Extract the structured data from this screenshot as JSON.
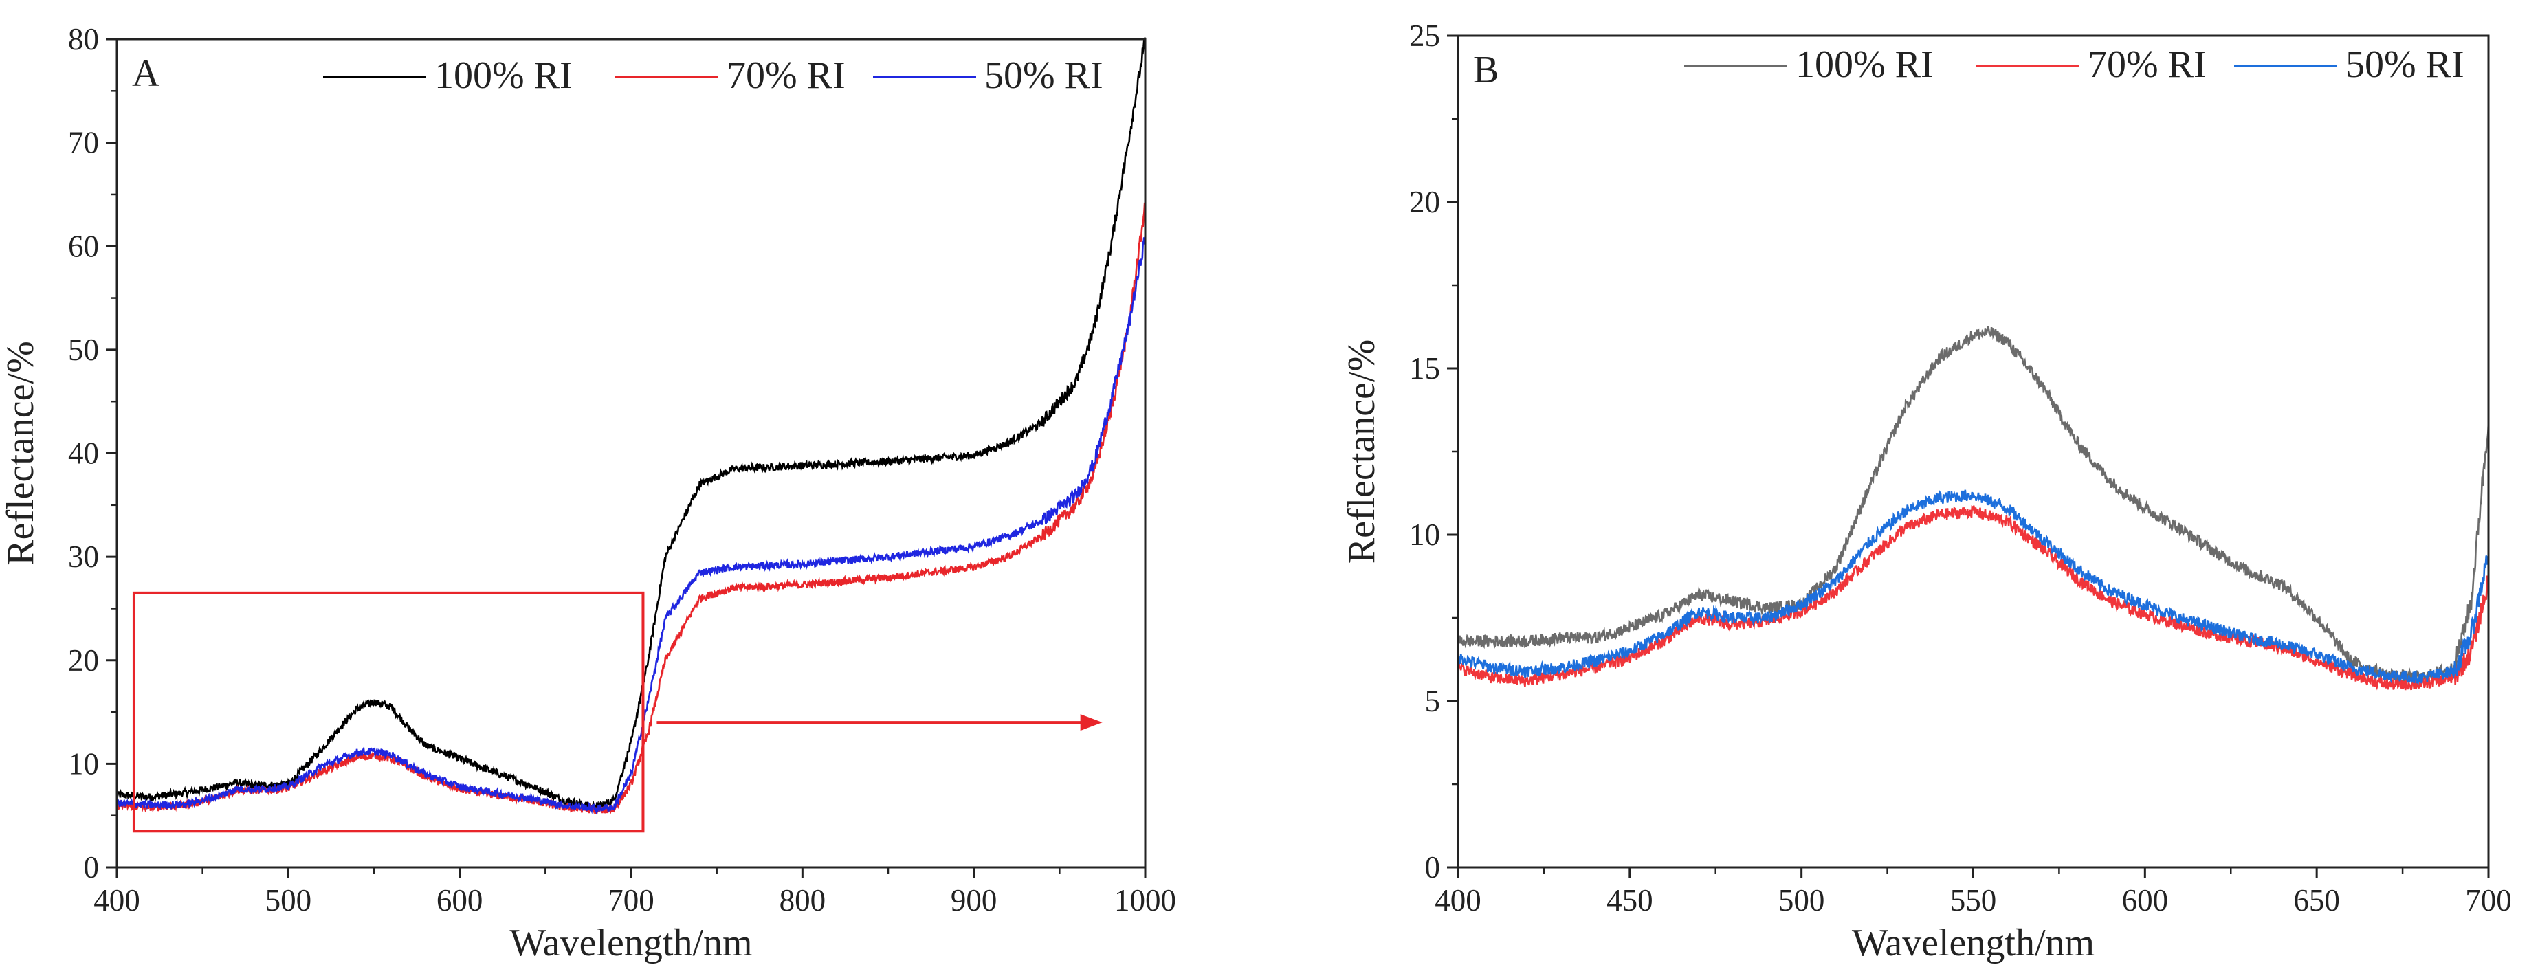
{
  "chart_data": [
    {
      "panel": "A",
      "type": "line",
      "xlabel": "Wavelength/nm",
      "ylabel": "Reflectance/%",
      "xlim": [
        400,
        1000
      ],
      "ylim": [
        0,
        80
      ],
      "xticks": [
        400,
        500,
        600,
        700,
        800,
        900,
        1000
      ],
      "yticks": [
        0,
        10,
        20,
        30,
        40,
        50,
        60,
        70,
        80
      ],
      "legend_position": "top-right",
      "annotations": [
        {
          "type": "highlight-box",
          "x_range": [
            410,
            707
          ],
          "y_range": [
            3.5,
            26.5
          ],
          "color": "#e8252a"
        },
        {
          "type": "arrow",
          "from": [
            715,
            14
          ],
          "to": [
            975,
            14
          ],
          "color": "#e8252a"
        }
      ],
      "series": [
        {
          "name": "100% RI",
          "color": "#000000",
          "x": [
            400,
            420,
            440,
            460,
            470,
            480,
            500,
            520,
            530,
            540,
            550,
            560,
            570,
            580,
            600,
            620,
            640,
            660,
            680,
            690,
            700,
            710,
            720,
            740,
            760,
            800,
            850,
            900,
            920,
            940,
            960,
            970,
            980,
            990,
            1000
          ],
          "y": [
            7,
            6.8,
            7.2,
            7.8,
            8.2,
            7.9,
            8.0,
            11.5,
            13.5,
            15.3,
            16.0,
            15.5,
            13.5,
            11.8,
            10.5,
            9.2,
            8.0,
            6.5,
            5.8,
            6.5,
            12,
            20,
            30,
            37,
            38.5,
            38.8,
            39.2,
            39.8,
            41,
            43,
            47,
            52,
            60,
            70,
            80
          ]
        },
        {
          "name": "70% RI",
          "color": "#e8252a",
          "x": [
            400,
            420,
            440,
            460,
            470,
            480,
            500,
            520,
            540,
            550,
            560,
            580,
            600,
            620,
            640,
            660,
            680,
            690,
            700,
            710,
            720,
            740,
            760,
            800,
            850,
            900,
            920,
            940,
            960,
            970,
            980,
            990,
            1000
          ],
          "y": [
            6.0,
            5.8,
            6.0,
            6.8,
            7.5,
            7.4,
            7.6,
            9.3,
            10.6,
            10.8,
            10.5,
            8.8,
            7.5,
            7.0,
            6.5,
            5.8,
            5.5,
            5.6,
            8,
            13,
            20,
            26,
            27,
            27.3,
            28,
            29,
            30,
            32,
            35,
            38,
            44,
            52,
            64
          ]
        },
        {
          "name": "50% RI",
          "color": "#1f26e0",
          "x": [
            400,
            420,
            440,
            460,
            470,
            480,
            500,
            520,
            540,
            550,
            560,
            580,
            600,
            620,
            640,
            660,
            680,
            690,
            700,
            710,
            720,
            740,
            760,
            800,
            850,
            900,
            920,
            940,
            960,
            970,
            980,
            990,
            1000
          ],
          "y": [
            6.2,
            6.0,
            6.1,
            6.9,
            7.6,
            7.5,
            7.8,
            9.8,
            11.1,
            11.2,
            10.9,
            9.0,
            7.8,
            7.2,
            6.7,
            6.0,
            5.7,
            5.8,
            9,
            16,
            24,
            28.5,
            29,
            29.3,
            30,
            31,
            32,
            33.5,
            36,
            39,
            45,
            52,
            61
          ]
        }
      ]
    },
    {
      "panel": "B",
      "type": "line",
      "xlabel": "Wavelength/nm",
      "ylabel": "Reflectance/%",
      "xlim": [
        400,
        700
      ],
      "ylim": [
        0,
        25
      ],
      "xticks": [
        400,
        450,
        500,
        550,
        600,
        650,
        700
      ],
      "yticks": [
        0,
        5,
        10,
        15,
        20,
        25
      ],
      "legend_position": "top-right",
      "series": [
        {
          "name": "100% RI",
          "color": "#6b6b6b",
          "x": [
            400,
            410,
            420,
            430,
            440,
            450,
            460,
            470,
            480,
            490,
            500,
            510,
            520,
            530,
            540,
            550,
            555,
            560,
            570,
            580,
            590,
            600,
            610,
            620,
            630,
            640,
            650,
            660,
            670,
            680,
            690,
            695,
            700
          ],
          "y": [
            6.8,
            6.8,
            6.8,
            6.9,
            6.9,
            7.2,
            7.6,
            8.2,
            8.0,
            7.8,
            7.9,
            9.0,
            11.5,
            13.8,
            15.3,
            16.0,
            16.1,
            15.8,
            14.5,
            12.8,
            11.6,
            10.8,
            10.2,
            9.5,
            8.9,
            8.5,
            7.5,
            6.2,
            5.8,
            5.7,
            6.0,
            8.0,
            13.5
          ]
        },
        {
          "name": "70% RI",
          "color": "#f0353a",
          "x": [
            400,
            410,
            420,
            430,
            440,
            450,
            460,
            470,
            480,
            490,
            500,
            510,
            520,
            530,
            540,
            550,
            560,
            570,
            580,
            590,
            600,
            610,
            620,
            630,
            640,
            650,
            660,
            670,
            680,
            690,
            695,
            700
          ],
          "y": [
            6.0,
            5.7,
            5.6,
            5.8,
            6.0,
            6.3,
            6.8,
            7.5,
            7.3,
            7.4,
            7.7,
            8.3,
            9.3,
            10.2,
            10.6,
            10.7,
            10.4,
            9.6,
            8.7,
            8.0,
            7.6,
            7.3,
            7.0,
            6.8,
            6.6,
            6.2,
            5.8,
            5.5,
            5.5,
            5.7,
            6.5,
            8.6
          ]
        },
        {
          "name": "50% RI",
          "color": "#1d6fdc",
          "x": [
            400,
            410,
            420,
            430,
            440,
            450,
            460,
            470,
            480,
            490,
            500,
            510,
            520,
            530,
            540,
            550,
            560,
            570,
            580,
            590,
            600,
            610,
            620,
            630,
            640,
            650,
            660,
            670,
            680,
            690,
            695,
            700
          ],
          "y": [
            6.3,
            6.0,
            5.9,
            6.0,
            6.2,
            6.5,
            7.0,
            7.7,
            7.5,
            7.5,
            7.9,
            8.6,
            9.8,
            10.7,
            11.1,
            11.2,
            10.8,
            9.9,
            9.0,
            8.3,
            7.9,
            7.5,
            7.2,
            6.9,
            6.7,
            6.4,
            6.0,
            5.8,
            5.7,
            5.9,
            7.0,
            9.5
          ]
        }
      ]
    }
  ]
}
